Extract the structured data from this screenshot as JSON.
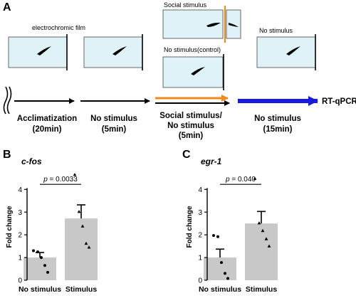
{
  "panels": {
    "a": "A",
    "b": "B",
    "c": "C"
  },
  "schematic": {
    "labels": {
      "film": "electrochromic film",
      "social": "Social stimulus",
      "control": "No stimulus(control)",
      "nostim": "No stimulus"
    },
    "stages": [
      {
        "line1": "Acclimatization",
        "line2": "(20min)"
      },
      {
        "line1": "No stimulus",
        "line2": "(5min)"
      },
      {
        "line1": "Social stimulus/",
        "line2": "No stimulus",
        "line3": "(5min)"
      },
      {
        "line1": "No stimulus",
        "line2": "(15min)"
      }
    ],
    "endpoint": "RT-qPCR",
    "colors": {
      "orange": "#f08a1c",
      "blue": "#1a1adf",
      "tank": "#dff2f8",
      "black": "#000000"
    }
  },
  "chart_data": [
    {
      "type": "bar",
      "gene": "c-fos",
      "categories": [
        "No stimulus",
        "Stimulus"
      ],
      "values": [
        1.0,
        2.72
      ],
      "errors": [
        0.22,
        0.6
      ],
      "ylabel": "Fold change",
      "ylim": [
        0,
        4.7
      ],
      "yticks": [
        "0",
        "1",
        "2",
        "3",
        "4"
      ],
      "pvalue": {
        "prefix": "p",
        "text": " = 0.0033"
      },
      "points": [
        [
          1.3,
          1.25,
          1.0,
          0.65,
          0.35
        ],
        [
          4.65,
          3.02,
          2.38,
          1.62,
          1.45
        ]
      ],
      "markers": [
        "circle",
        "triangle"
      ],
      "bar_color": "#c8c8c8"
    },
    {
      "type": "bar",
      "gene": "egr-1",
      "categories": [
        "No stimulus",
        "Stimulus"
      ],
      "values": [
        1.0,
        2.5
      ],
      "errors": [
        0.37,
        0.53
      ],
      "ylabel": "Fold change",
      "ylim": [
        0,
        4.7
      ],
      "yticks": [
        "0",
        "1",
        "2",
        "3",
        "4"
      ],
      "pvalue": {
        "prefix": "p",
        "text": " = 0.040"
      },
      "points": [
        [
          1.97,
          1.92,
          0.78,
          0.3,
          0.08
        ],
        [
          4.48,
          2.52,
          2.18,
          1.82,
          1.5
        ]
      ],
      "markers": [
        "circle",
        "triangle"
      ],
      "bar_color": "#c8c8c8"
    }
  ]
}
